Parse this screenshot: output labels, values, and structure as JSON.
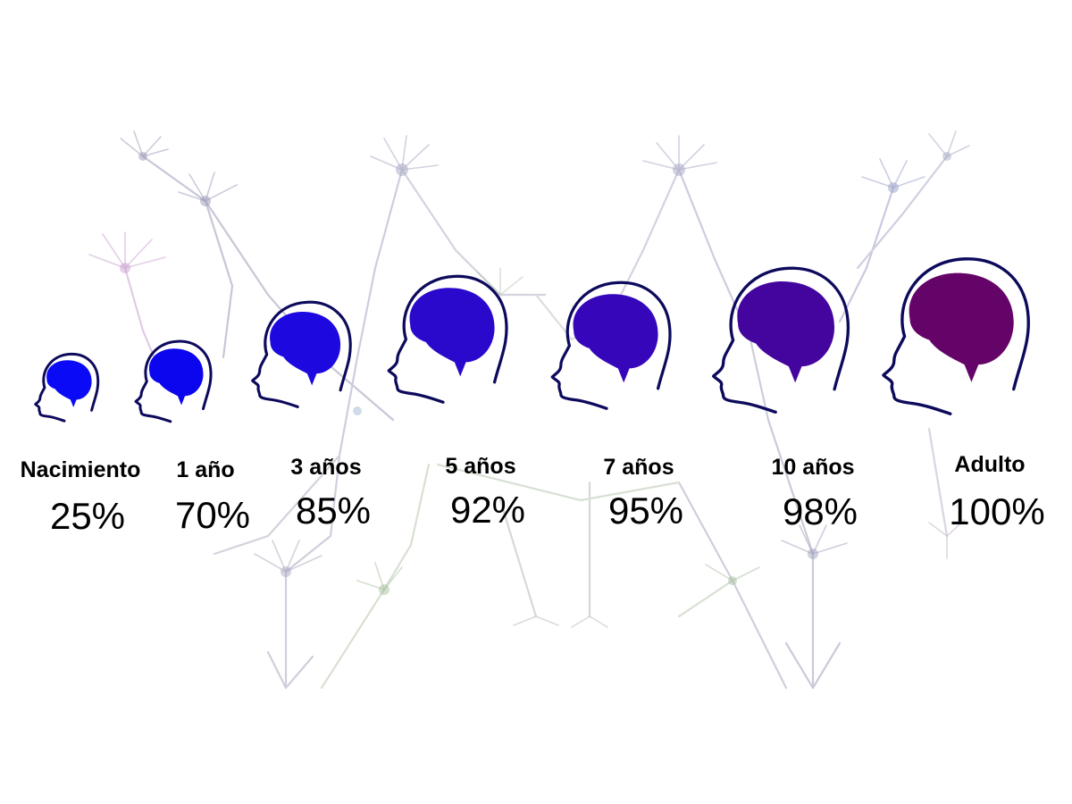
{
  "diagram": {
    "background_motif": "neuron-network",
    "head_outline_color": "#0d0a5c",
    "stages": [
      {
        "label": "Nacimiento",
        "percent": "25%",
        "brain_color": "#0a0af7"
      },
      {
        "label": "1 año",
        "percent": "70%",
        "brain_color": "#0b06ee"
      },
      {
        "label": "3 años",
        "percent": "85%",
        "brain_color": "#1d08e0"
      },
      {
        "label": "5 años",
        "percent": "92%",
        "brain_color": "#2a08cc"
      },
      {
        "label": "7 años",
        "percent": "95%",
        "brain_color": "#3606bb"
      },
      {
        "label": "10 años",
        "percent": "98%",
        "brain_color": "#44059f"
      },
      {
        "label": "Adulto",
        "percent": "100%",
        "brain_color": "#650468"
      }
    ]
  }
}
